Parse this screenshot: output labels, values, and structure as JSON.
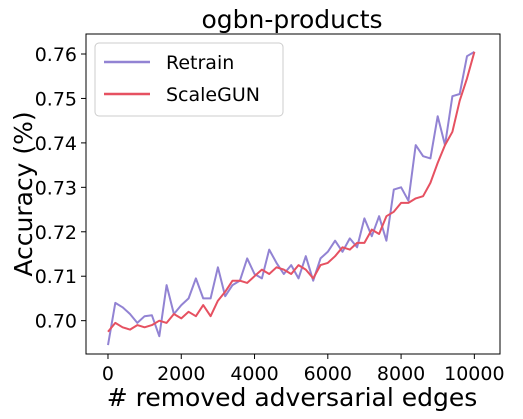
{
  "chart_data": {
    "type": "line",
    "title": "ogbn-products",
    "xlabel": "# removed adversarial edges",
    "ylabel": "Accuracy (%)",
    "xlim": [
      -600,
      10700
    ],
    "ylim": [
      0.6925,
      0.7645
    ],
    "xticks": [
      0,
      2000,
      4000,
      6000,
      8000,
      10000
    ],
    "yticks": [
      0.7,
      0.71,
      0.72,
      0.73,
      0.74,
      0.75,
      0.76
    ],
    "grid": false,
    "legend_position": "top-left",
    "x": [
      0,
      200,
      400,
      600,
      800,
      1000,
      1200,
      1400,
      1600,
      1800,
      2000,
      2200,
      2400,
      2600,
      2800,
      3000,
      3200,
      3400,
      3600,
      3800,
      4000,
      4200,
      4400,
      4600,
      4800,
      5000,
      5200,
      5400,
      5600,
      5800,
      6000,
      6200,
      6400,
      6600,
      6800,
      7000,
      7200,
      7400,
      7600,
      7800,
      8000,
      8200,
      8400,
      8600,
      8800,
      9000,
      9200,
      9400,
      9600,
      9800,
      10000
    ],
    "series": [
      {
        "name": "Retrain",
        "color": "#9283d3",
        "values": [
          0.6945,
          0.704,
          0.703,
          0.7015,
          0.6995,
          0.701,
          0.7012,
          0.6965,
          0.708,
          0.7015,
          0.7035,
          0.705,
          0.7095,
          0.705,
          0.705,
          0.712,
          0.7055,
          0.708,
          0.709,
          0.714,
          0.7105,
          0.7095,
          0.716,
          0.713,
          0.7105,
          0.7125,
          0.7095,
          0.7145,
          0.709,
          0.714,
          0.7155,
          0.718,
          0.7155,
          0.7185,
          0.7165,
          0.723,
          0.719,
          0.7235,
          0.718,
          0.7295,
          0.73,
          0.727,
          0.7395,
          0.737,
          0.7365,
          0.746,
          0.7395,
          0.7505,
          0.751,
          0.7595,
          0.7605
        ]
      },
      {
        "name": "ScaleGUN",
        "color": "#e65161",
        "values": [
          0.6975,
          0.6995,
          0.6985,
          0.698,
          0.699,
          0.6985,
          0.699,
          0.7,
          0.6995,
          0.7015,
          0.7005,
          0.702,
          0.701,
          0.7035,
          0.701,
          0.7045,
          0.7065,
          0.709,
          0.709,
          0.7085,
          0.71,
          0.7115,
          0.7105,
          0.712,
          0.7115,
          0.7105,
          0.7125,
          0.7115,
          0.7095,
          0.7125,
          0.713,
          0.7145,
          0.7165,
          0.716,
          0.7175,
          0.7175,
          0.7205,
          0.7195,
          0.7235,
          0.7245,
          0.7265,
          0.7265,
          0.7275,
          0.728,
          0.731,
          0.7355,
          0.7395,
          0.7425,
          0.7495,
          0.7545,
          0.7605
        ]
      }
    ]
  }
}
